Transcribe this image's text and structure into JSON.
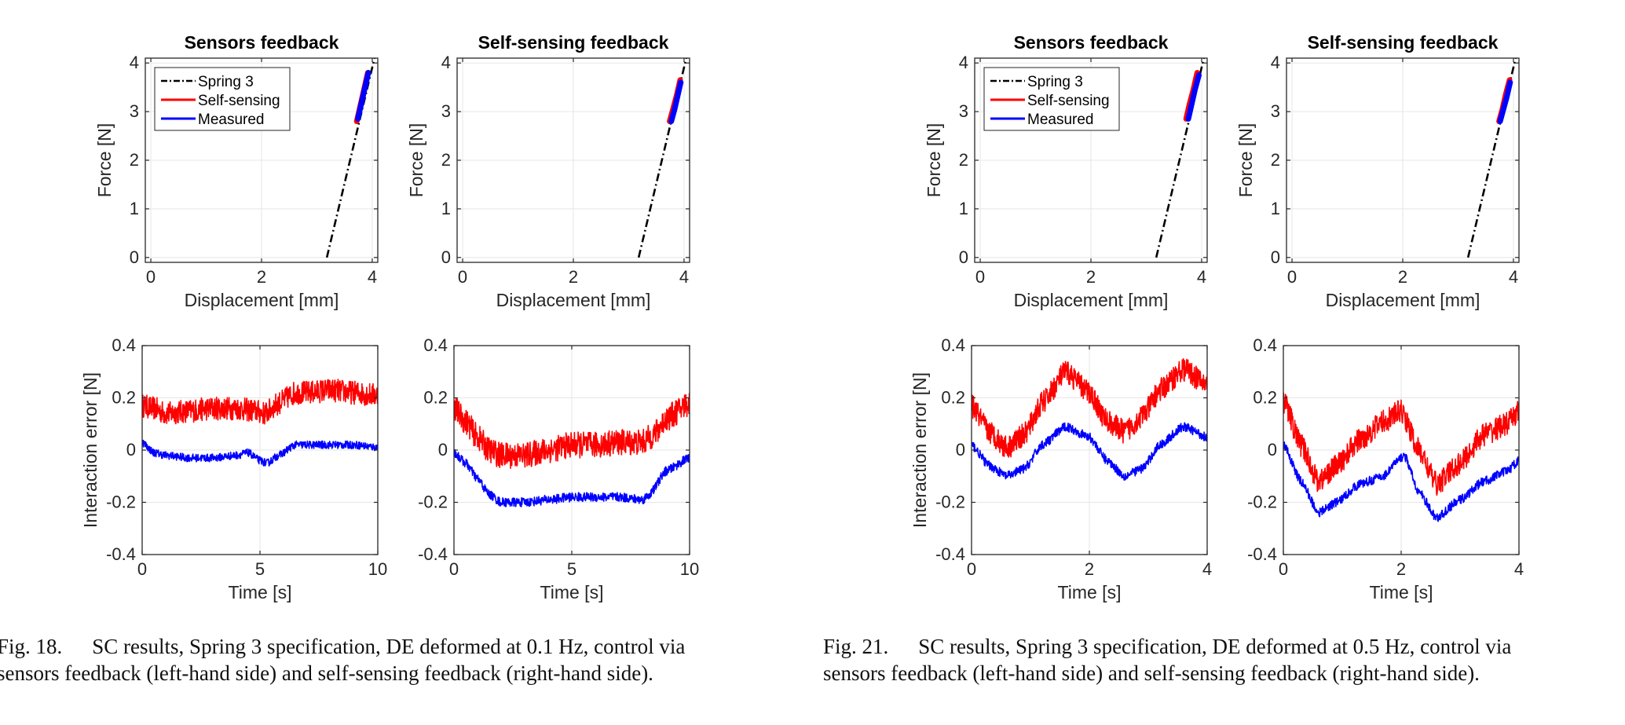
{
  "captions": {
    "left": {
      "label": "Fig. 18.",
      "line1": "SC results, Spring 3 specification, DE deformed at 0.1 Hz, control via",
      "line2": "sensors feedback (left-hand side) and self-sensing feedback (right-hand side)."
    },
    "right": {
      "label": "Fig. 21.",
      "line1": "SC results, Spring 3 specification, DE deformed at 0.5 Hz, control via",
      "line2": "sensors feedback (left-hand side) and self-sensing feedback (right-hand side)."
    }
  },
  "colors": {
    "spring": "#000000",
    "self_sensing": "#ff0000",
    "measured": "#0000ff",
    "grid": "#e6e6e6",
    "axis": "#262626"
  },
  "chart_data": [
    {
      "id": "fig18-force-sensors",
      "type": "line",
      "title": "Sensors feedback",
      "xlabel": "Displacement [mm]",
      "ylabel": "Force [N]",
      "xlim": [
        -0.1,
        4.1
      ],
      "ylim": [
        -0.1,
        4.1
      ],
      "xticks": [
        0,
        2,
        4
      ],
      "yticks": [
        0,
        1,
        2,
        3,
        4
      ],
      "grid": true,
      "legend": {
        "position": "top-left",
        "entries": [
          "Spring 3",
          "Self-sensing",
          "Measured"
        ]
      },
      "series": [
        {
          "name": "Spring 3",
          "style": "dashdot",
          "x": [
            3.18,
            4.04
          ],
          "y": [
            0.0,
            4.1
          ]
        },
        {
          "name": "Self-sensing",
          "style": "band",
          "x": [
            3.72,
            3.78,
            3.85,
            3.92
          ],
          "y": [
            2.8,
            3.1,
            3.45,
            3.8
          ]
        },
        {
          "name": "Measured",
          "style": "band",
          "x": [
            3.74,
            3.8,
            3.87,
            3.93
          ],
          "y": [
            2.85,
            3.15,
            3.5,
            3.8
          ]
        }
      ]
    },
    {
      "id": "fig18-force-self",
      "type": "line",
      "title": "Self-sensing feedback",
      "xlabel": "Displacement [mm]",
      "ylabel": "Force [N]",
      "xlim": [
        -0.1,
        4.1
      ],
      "ylim": [
        -0.1,
        4.1
      ],
      "xticks": [
        0,
        2,
        4
      ],
      "yticks": [
        0,
        1,
        2,
        3,
        4
      ],
      "grid": true,
      "series": [
        {
          "name": "Spring 3",
          "style": "dashdot",
          "x": [
            3.18,
            4.04
          ],
          "y": [
            0.0,
            4.1
          ]
        },
        {
          "name": "Self-sensing",
          "style": "band",
          "x": [
            3.74,
            3.8,
            3.87,
            3.93
          ],
          "y": [
            2.8,
            3.05,
            3.35,
            3.65
          ]
        },
        {
          "name": "Measured",
          "style": "band",
          "x": [
            3.77,
            3.83,
            3.89,
            3.94
          ],
          "y": [
            2.8,
            3.05,
            3.35,
            3.6
          ]
        }
      ]
    },
    {
      "id": "fig18-error-sensors",
      "type": "line",
      "xlabel": "Time [s]",
      "ylabel": "Interaction error [N]",
      "xlim": [
        0,
        10
      ],
      "ylim": [
        -0.4,
        0.4
      ],
      "xticks": [
        0,
        5,
        10
      ],
      "yticks": [
        -0.4,
        -0.2,
        0,
        0.2,
        0.4
      ],
      "grid": true,
      "series": [
        {
          "name": "Self-sensing",
          "style": "noisy",
          "noise": 0.09,
          "x": [
            0,
            0.5,
            1,
            2,
            3,
            4,
            4.8,
            5.2,
            5.8,
            6.5,
            7,
            8,
            9,
            10
          ],
          "y": [
            0.17,
            0.16,
            0.14,
            0.15,
            0.16,
            0.16,
            0.15,
            0.14,
            0.18,
            0.22,
            0.22,
            0.23,
            0.22,
            0.21
          ]
        },
        {
          "name": "Measured",
          "style": "noisy",
          "noise": 0.03,
          "x": [
            0,
            0.5,
            1,
            2,
            3,
            4,
            4.5,
            5,
            5.3,
            5.8,
            6.5,
            8,
            9,
            10
          ],
          "y": [
            0.03,
            -0.01,
            -0.02,
            -0.03,
            -0.03,
            -0.02,
            -0.01,
            -0.04,
            -0.05,
            -0.02,
            0.02,
            0.02,
            0.02,
            0.01
          ]
        }
      ]
    },
    {
      "id": "fig18-error-self",
      "type": "line",
      "xlabel": "Time [s]",
      "xlim": [
        0,
        10
      ],
      "ylim": [
        -0.4,
        0.4
      ],
      "xticks": [
        0,
        5,
        10
      ],
      "yticks": [
        -0.4,
        -0.2,
        0,
        0.2,
        0.4
      ],
      "grid": true,
      "series": [
        {
          "name": "Self-sensing",
          "style": "noisy",
          "noise": 0.1,
          "x": [
            0,
            0.5,
            1,
            1.5,
            2,
            3,
            4,
            5,
            6,
            7,
            8,
            8.5,
            9,
            10
          ],
          "y": [
            0.16,
            0.11,
            0.05,
            0.0,
            -0.02,
            -0.02,
            0.0,
            0.02,
            0.02,
            0.03,
            0.03,
            0.06,
            0.12,
            0.18
          ]
        },
        {
          "name": "Measured",
          "style": "noisy",
          "noise": 0.035,
          "x": [
            0,
            0.5,
            1,
            1.5,
            2,
            3,
            4,
            5,
            6,
            7,
            8,
            8.3,
            9,
            10
          ],
          "y": [
            -0.01,
            -0.05,
            -0.11,
            -0.17,
            -0.2,
            -0.2,
            -0.19,
            -0.18,
            -0.18,
            -0.18,
            -0.19,
            -0.17,
            -0.08,
            -0.03
          ]
        }
      ]
    },
    {
      "id": "fig21-force-sensors",
      "type": "line",
      "title": "Sensors feedback",
      "xlabel": "Displacement [mm]",
      "ylabel": "Force [N]",
      "xlim": [
        -0.1,
        4.1
      ],
      "ylim": [
        -0.1,
        4.1
      ],
      "xticks": [
        0,
        2,
        4
      ],
      "yticks": [
        0,
        1,
        2,
        3,
        4
      ],
      "grid": true,
      "legend": {
        "position": "top-left",
        "entries": [
          "Spring 3",
          "Self-sensing",
          "Measured"
        ]
      },
      "series": [
        {
          "name": "Spring 3",
          "style": "dashdot",
          "x": [
            3.18,
            4.04
          ],
          "y": [
            0.0,
            4.1
          ]
        },
        {
          "name": "Self-sensing",
          "style": "band",
          "x": [
            3.72,
            3.78,
            3.85,
            3.92
          ],
          "y": [
            2.85,
            3.15,
            3.45,
            3.8
          ]
        },
        {
          "name": "Measured",
          "style": "band",
          "x": [
            3.76,
            3.82,
            3.88,
            3.95
          ],
          "y": [
            2.85,
            3.15,
            3.45,
            3.75
          ]
        }
      ]
    },
    {
      "id": "fig21-force-self",
      "type": "line",
      "title": "Self-sensing feedback",
      "xlabel": "Displacement [mm]",
      "ylabel": "Force [N]",
      "xlim": [
        -0.1,
        4.1
      ],
      "ylim": [
        -0.1,
        4.1
      ],
      "xticks": [
        0,
        2,
        4
      ],
      "yticks": [
        0,
        1,
        2,
        3,
        4
      ],
      "grid": true,
      "series": [
        {
          "name": "Spring 3",
          "style": "dashdot",
          "x": [
            3.18,
            4.04
          ],
          "y": [
            0.0,
            4.1
          ]
        },
        {
          "name": "Self-sensing",
          "style": "band",
          "x": [
            3.74,
            3.8,
            3.86,
            3.93
          ],
          "y": [
            2.8,
            3.05,
            3.35,
            3.65
          ]
        },
        {
          "name": "Measured",
          "style": "band",
          "x": [
            3.76,
            3.82,
            3.88,
            3.94
          ],
          "y": [
            2.8,
            3.05,
            3.3,
            3.6
          ]
        }
      ]
    },
    {
      "id": "fig21-error-sensors",
      "type": "line",
      "xlabel": "Time [s]",
      "ylabel": "Interaction error [N]",
      "xlim": [
        0,
        4
      ],
      "ylim": [
        -0.4,
        0.4
      ],
      "xticks": [
        0,
        2,
        4
      ],
      "yticks": [
        -0.4,
        -0.2,
        0,
        0.2,
        0.4
      ],
      "grid": true,
      "series": [
        {
          "name": "Self-sensing",
          "style": "noisy",
          "noise": 0.09,
          "x": [
            0,
            0.3,
            0.6,
            0.9,
            1.2,
            1.6,
            2.0,
            2.3,
            2.6,
            2.9,
            3.2,
            3.6,
            4.0
          ],
          "y": [
            0.17,
            0.07,
            0.01,
            0.06,
            0.18,
            0.3,
            0.22,
            0.11,
            0.07,
            0.13,
            0.23,
            0.31,
            0.25
          ]
        },
        {
          "name": "Measured",
          "style": "noisy",
          "noise": 0.035,
          "x": [
            0,
            0.3,
            0.6,
            0.9,
            1.2,
            1.6,
            2.0,
            2.3,
            2.6,
            2.9,
            3.2,
            3.6,
            4.0
          ],
          "y": [
            0.02,
            -0.06,
            -0.1,
            -0.07,
            0.02,
            0.09,
            0.05,
            -0.04,
            -0.1,
            -0.07,
            0.02,
            0.09,
            0.05
          ]
        }
      ]
    },
    {
      "id": "fig21-error-self",
      "type": "line",
      "xlabel": "Time [s]",
      "xlim": [
        0,
        4
      ],
      "ylim": [
        -0.4,
        0.4
      ],
      "xticks": [
        0,
        2,
        4
      ],
      "yticks": [
        -0.4,
        -0.2,
        0,
        0.2,
        0.4
      ],
      "grid": true,
      "series": [
        {
          "name": "Self-sensing",
          "style": "noisy",
          "noise": 0.09,
          "x": [
            0,
            0.3,
            0.6,
            0.9,
            1.3,
            1.7,
            2.0,
            2.3,
            2.6,
            3.0,
            3.4,
            3.8,
            4.0
          ],
          "y": [
            0.19,
            0.02,
            -0.12,
            -0.06,
            0.04,
            0.11,
            0.15,
            0.0,
            -0.13,
            -0.05,
            0.06,
            0.1,
            0.15
          ]
        },
        {
          "name": "Measured",
          "style": "noisy",
          "noise": 0.035,
          "x": [
            0,
            0.3,
            0.6,
            0.9,
            1.3,
            1.7,
            1.9,
            2.05,
            2.3,
            2.6,
            3.0,
            3.4,
            3.8,
            4.0
          ],
          "y": [
            0.02,
            -0.12,
            -0.24,
            -0.2,
            -0.13,
            -0.1,
            -0.05,
            -0.02,
            -0.16,
            -0.26,
            -0.19,
            -0.12,
            -0.08,
            -0.04
          ]
        }
      ]
    }
  ]
}
